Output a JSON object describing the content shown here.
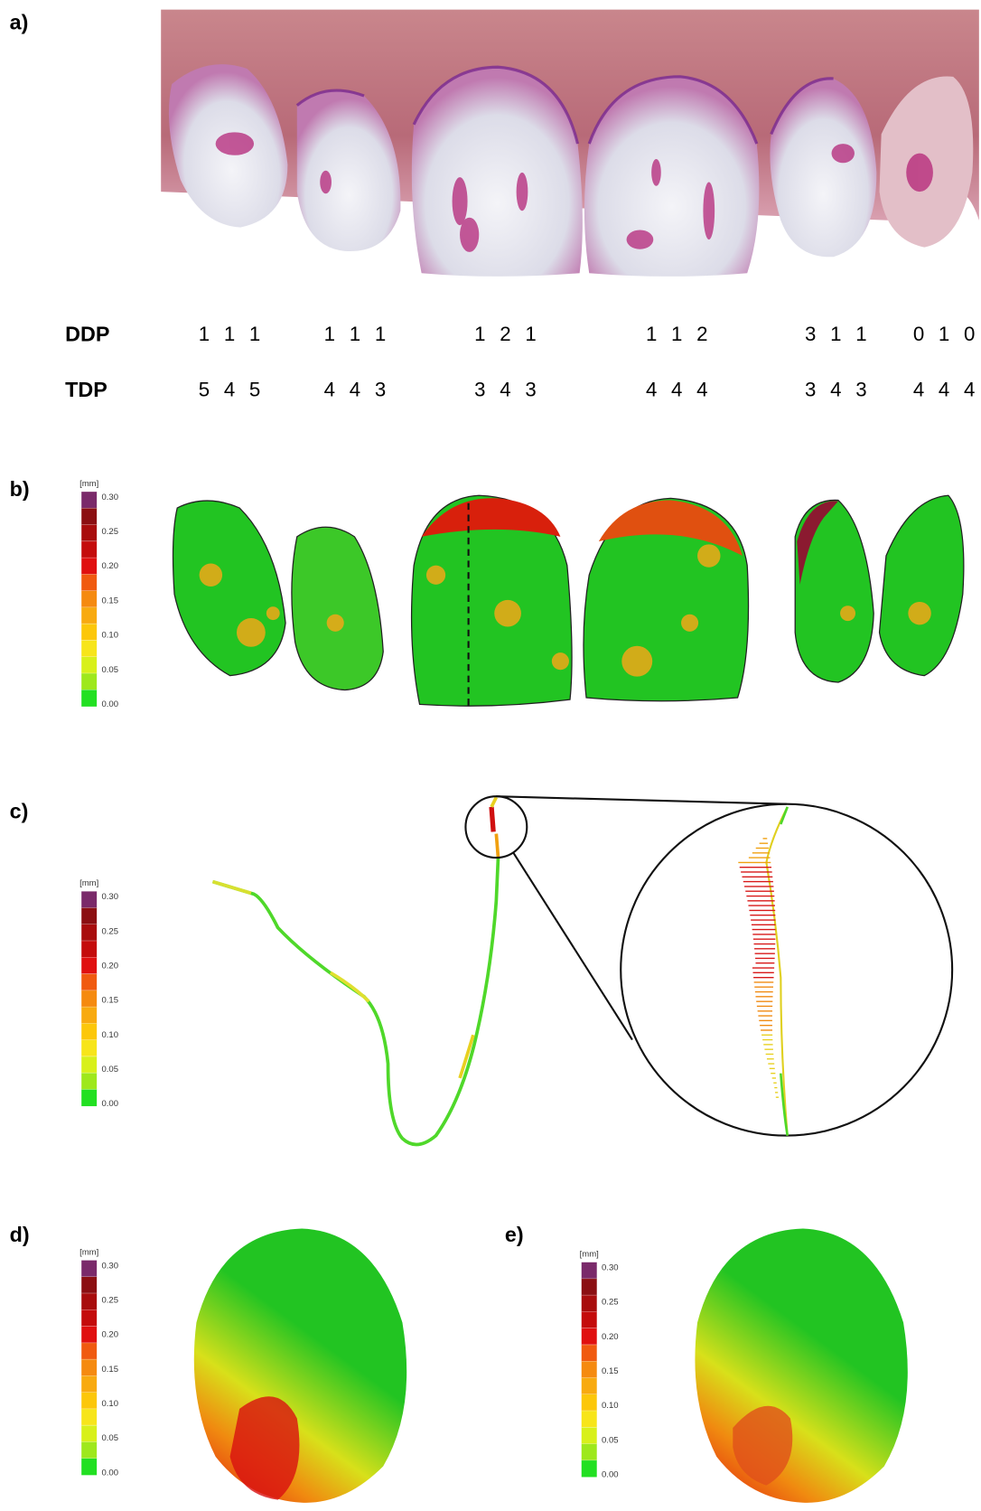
{
  "panels": {
    "a": "a)",
    "b": "b)",
    "c": "c)",
    "d": "d)",
    "e": "e)"
  },
  "scores": [
    {
      "label": "DDP",
      "groups": [
        [
          "1",
          "1",
          "1"
        ],
        [
          "1",
          "1",
          "1"
        ],
        [
          "1",
          "2",
          "1"
        ],
        [
          "1",
          "1",
          "2"
        ],
        [
          "3",
          "1",
          "1"
        ],
        [
          "0",
          "1",
          "0"
        ]
      ]
    },
    {
      "label": "TDP",
      "groups": [
        [
          "5",
          "4",
          "5"
        ],
        [
          "4",
          "4",
          "3"
        ],
        [
          "3",
          "4",
          "3"
        ],
        [
          "4",
          "4",
          "4"
        ],
        [
          "3",
          "4",
          "3"
        ],
        [
          "4",
          "4",
          "4"
        ]
      ]
    }
  ],
  "color_scale": {
    "unit": "[mm]",
    "ticks": [
      "0.30",
      "0.25",
      "0.20",
      "0.15",
      "0.10",
      "0.05",
      "0.00"
    ],
    "colors": [
      "#7a2a6a",
      "#8b0f12",
      "#a80d0d",
      "#c40c0c",
      "#e01010",
      "#f05a10",
      "#f58a10",
      "#f8aa10",
      "#fcc70a",
      "#f7e51a",
      "#d8f01a",
      "#9ee81c",
      "#22e022"
    ]
  }
}
